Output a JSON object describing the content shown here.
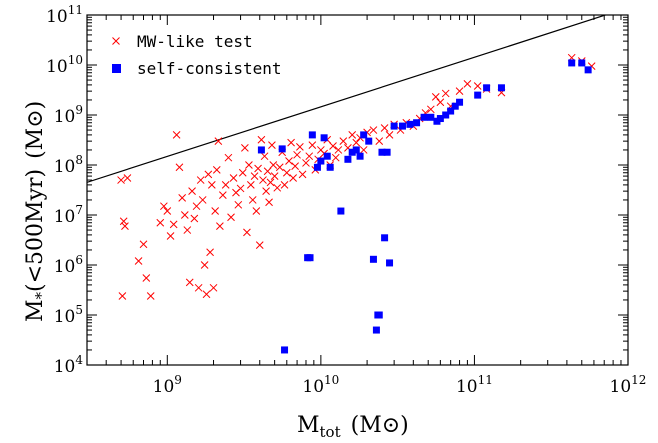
{
  "chart_data": {
    "type": "scatter",
    "xscale": "log",
    "yscale": "log",
    "xlim": [
      300000000.0,
      1000000000000.0
    ],
    "ylim": [
      10000.0,
      100000000000.0
    ],
    "xlabel": {
      "main": "M",
      "sub": "tot",
      "unit": "(M⊙)"
    },
    "ylabel": {
      "main": "M",
      "sub": "*",
      "paren": "(<500Myr)",
      "unit": "(M⊙)"
    },
    "xticks": [
      {
        "value": 1000000000.0,
        "base": "10",
        "exp": "9"
      },
      {
        "value": 10000000000.0,
        "base": "10",
        "exp": "10"
      },
      {
        "value": 100000000000.0,
        "base": "10",
        "exp": "11"
      },
      {
        "value": 1000000000000.0,
        "base": "10",
        "exp": "12"
      }
    ],
    "yticks": [
      {
        "value": 10000.0,
        "base": "10",
        "exp": "4"
      },
      {
        "value": 100000.0,
        "base": "10",
        "exp": "5"
      },
      {
        "value": 1000000.0,
        "base": "10",
        "exp": "6"
      },
      {
        "value": 10000000.0,
        "base": "10",
        "exp": "7"
      },
      {
        "value": 100000000.0,
        "base": "10",
        "exp": "8"
      },
      {
        "value": 1000000000.0,
        "base": "10",
        "exp": "9"
      },
      {
        "value": 10000000000.0,
        "base": "10",
        "exp": "10"
      },
      {
        "value": 100000000000.0,
        "base": "10",
        "exp": "11"
      }
    ],
    "legend_position": "top-left",
    "reference_line": {
      "x": [
        300000000.0,
        1000000000000.0
      ],
      "y": [
        45000000.0,
        140000000000.0
      ],
      "color": "#000000"
    },
    "series": [
      {
        "name": "MW-like test",
        "marker": "x",
        "color": "#ff0000",
        "points": [
          [
            500000000.0,
            50000000.0
          ],
          [
            550000000.0,
            55000000.0
          ],
          [
            520000000.0,
            7500000.0
          ],
          [
            530000000.0,
            6000000.0
          ],
          [
            510000000.0,
            240000.0
          ],
          [
            650000000.0,
            1200000.0
          ],
          [
            700000000.0,
            2600000.0
          ],
          [
            730000000.0,
            550000.0
          ],
          [
            780000000.0,
            240000.0
          ],
          [
            900000000.0,
            7000000.0
          ],
          [
            950000000.0,
            15000000.0
          ],
          [
            1000000000.0,
            12000000.0
          ],
          [
            1050000000.0,
            3800000.0
          ],
          [
            1100000000.0,
            6500000.0
          ],
          [
            1150000000.0,
            400000000.0
          ],
          [
            1200000000.0,
            90000000.0
          ],
          [
            1250000000.0,
            22000000.0
          ],
          [
            1300000000.0,
            10000000.0
          ],
          [
            1350000000.0,
            5000000.0
          ],
          [
            1400000000.0,
            450000.0
          ],
          [
            1450000000.0,
            30000000.0
          ],
          [
            1500000000.0,
            8500000.0
          ],
          [
            1550000000.0,
            15000000.0
          ],
          [
            1600000000.0,
            350000.0
          ],
          [
            1650000000.0,
            50000000.0
          ],
          [
            1700000000.0,
            20000000.0
          ],
          [
            1750000000.0,
            1000000.0
          ],
          [
            1800000000.0,
            260000.0
          ],
          [
            1850000000.0,
            65000000.0
          ],
          [
            1900000000.0,
            1800000.0
          ],
          [
            1950000000.0,
            40000000.0
          ],
          [
            2000000000.0,
            350000.0
          ],
          [
            2050000000.0,
            12000000.0
          ],
          [
            2100000000.0,
            80000000.0
          ],
          [
            2150000000.0,
            300000000.0
          ],
          [
            2200000000.0,
            6000000.0
          ],
          [
            2300000000.0,
            25000000.0
          ],
          [
            2400000000.0,
            40000000.0
          ],
          [
            2500000000.0,
            140000000.0
          ],
          [
            2600000000.0,
            9000000.0
          ],
          [
            2700000000.0,
            55000000.0
          ],
          [
            2800000000.0,
            28000000.0
          ],
          [
            2900000000.0,
            16000000.0
          ],
          [
            3000000000.0,
            34000000.0
          ],
          [
            3100000000.0,
            70000000.0
          ],
          [
            3200000000.0,
            220000000.0
          ],
          [
            3300000000.0,
            4500000.0
          ],
          [
            3400000000.0,
            100000000.0
          ],
          [
            3500000000.0,
            40000000.0
          ],
          [
            3600000000.0,
            20000000.0
          ],
          [
            3700000000.0,
            60000000.0
          ],
          [
            3800000000.0,
            12000000.0
          ],
          [
            3900000000.0,
            85000000.0
          ],
          [
            4000000000.0,
            2500000.0
          ],
          [
            4100000000.0,
            320000000.0
          ],
          [
            4200000000.0,
            50000000.0
          ],
          [
            4300000000.0,
            150000000.0
          ],
          [
            4400000000.0,
            30000000.0
          ],
          [
            4500000000.0,
            75000000.0
          ],
          [
            4600000000.0,
            18000000.0
          ],
          [
            4700000000.0,
            45000000.0
          ],
          [
            4800000000.0,
            250000000.0
          ],
          [
            4900000000.0,
            100000000.0
          ],
          [
            5000000000.0,
            60000000.0
          ],
          [
            5200000000.0,
            35000000.0
          ],
          [
            5400000000.0,
            90000000.0
          ],
          [
            5600000000.0,
            180000000.0
          ],
          [
            5800000000.0,
            40000000.0
          ],
          [
            6000000000.0,
            70000000.0
          ],
          [
            6200000000.0,
            120000000.0
          ],
          [
            6400000000.0,
            280000000.0
          ],
          [
            6600000000.0,
            55000000.0
          ],
          [
            6800000000.0,
            95000000.0
          ],
          [
            7000000000.0,
            160000000.0
          ],
          [
            7300000000.0,
            230000000.0
          ],
          [
            7600000000.0,
            65000000.0
          ],
          [
            8000000000.0,
            110000000.0
          ],
          [
            8400000000.0,
            150000000.0
          ],
          [
            8800000000.0,
            250000000.0
          ],
          [
            9200000000.0,
            80000000.0
          ],
          [
            9600000000.0,
            130000000.0
          ],
          [
            10000000000.0,
            200000000.0
          ],
          [
            10500000000.0,
            170000000.0
          ],
          [
            11000000000.0,
            320000000.0
          ],
          [
            11500000000.0,
            100000000.0
          ],
          [
            12000000000.0,
            240000000.0
          ],
          [
            12500000000.0,
            140000000.0
          ],
          [
            13000000000.0,
            200000000.0
          ],
          [
            14000000000.0,
            300000000.0
          ],
          [
            15000000000.0,
            220000000.0
          ],
          [
            16000000000.0,
            400000000.0
          ],
          [
            17000000000.0,
            280000000.0
          ],
          [
            18000000000.0,
            350000000.0
          ],
          [
            19000000000.0,
            200000000.0
          ],
          [
            20000000000.0,
            450000000.0
          ],
          [
            22000000000.0,
            500000000.0
          ],
          [
            24000000000.0,
            300000000.0
          ],
          [
            26000000000.0,
            550000000.0
          ],
          [
            28000000000.0,
            400000000.0
          ],
          [
            30000000000.0,
            650000000.0
          ],
          [
            33000000000.0,
            500000000.0
          ],
          [
            36000000000.0,
            700000000.0
          ],
          [
            40000000000.0,
            600000000.0
          ],
          [
            44000000000.0,
            850000000.0
          ],
          [
            48000000000.0,
            1100000000.0
          ],
          [
            52000000000.0,
            1300000000.0
          ],
          [
            56000000000.0,
            2300000000.0
          ],
          [
            60000000000.0,
            1800000000.0
          ],
          [
            65000000000.0,
            2700000000.0
          ],
          [
            70000000000.0,
            1500000000.0
          ],
          [
            80000000000.0,
            3000000000.0
          ],
          [
            90000000000.0,
            4200000000.0
          ],
          [
            105000000000.0,
            3800000000.0
          ],
          [
            120000000000.0,
            3300000000.0
          ],
          [
            150000000000.0,
            2800000000.0
          ],
          [
            430000000000.0,
            14000000000.0
          ],
          [
            500000000000.0,
            12000000000.0
          ],
          [
            580000000000.0,
            9500000000.0
          ]
        ]
      },
      {
        "name": "self-consistent",
        "marker": "square",
        "color": "#0000ff",
        "points": [
          [
            4100000000.0,
            200000000.0
          ],
          [
            5600000000.0,
            210000000.0
          ],
          [
            5800000000.0,
            20000.0
          ],
          [
            8200000000.0,
            1400000.0
          ],
          [
            8500000000.0,
            1400000.0
          ],
          [
            8800000000.0,
            400000000.0
          ],
          [
            9500000000.0,
            90000000.0
          ],
          [
            10000000000.0,
            120000000.0
          ],
          [
            10500000000.0,
            350000000.0
          ],
          [
            11000000000.0,
            150000000.0
          ],
          [
            11500000000.0,
            90000000.0
          ],
          [
            13500000000.0,
            12000000.0
          ],
          [
            15000000000.0,
            130000000.0
          ],
          [
            16000000000.0,
            180000000.0
          ],
          [
            17000000000.0,
            200000000.0
          ],
          [
            18000000000.0,
            150000000.0
          ],
          [
            19000000000.0,
            400000000.0
          ],
          [
            20500000000.0,
            300000000.0
          ],
          [
            22000000000.0,
            1300000.0
          ],
          [
            23000000000.0,
            50000.0
          ],
          [
            23500000000.0,
            100000.0
          ],
          [
            24000000000.0,
            100000.0
          ],
          [
            25000000000.0,
            180000000.0
          ],
          [
            26000000000.0,
            3500000.0
          ],
          [
            27000000000.0,
            180000000.0
          ],
          [
            28000000000.0,
            1100000.0
          ],
          [
            30000000000.0,
            600000000.0
          ],
          [
            34000000000.0,
            600000000.0
          ],
          [
            38000000000.0,
            650000000.0
          ],
          [
            42000000000.0,
            700000000.0
          ],
          [
            47000000000.0,
            900000000.0
          ],
          [
            52000000000.0,
            900000000.0
          ],
          [
            57000000000.0,
            750000000.0
          ],
          [
            60000000000.0,
            850000000.0
          ],
          [
            65000000000.0,
            1000000000.0
          ],
          [
            70000000000.0,
            1200000000.0
          ],
          [
            75000000000.0,
            1500000000.0
          ],
          [
            80000000000.0,
            1800000000.0
          ],
          [
            105000000000.0,
            2500000000.0
          ],
          [
            120000000000.0,
            3500000000.0
          ],
          [
            150000000000.0,
            3500000000.0
          ],
          [
            430000000000.0,
            11000000000.0
          ],
          [
            500000000000.0,
            11000000000.0
          ],
          [
            550000000000.0,
            8000000000.0
          ]
        ]
      }
    ]
  }
}
